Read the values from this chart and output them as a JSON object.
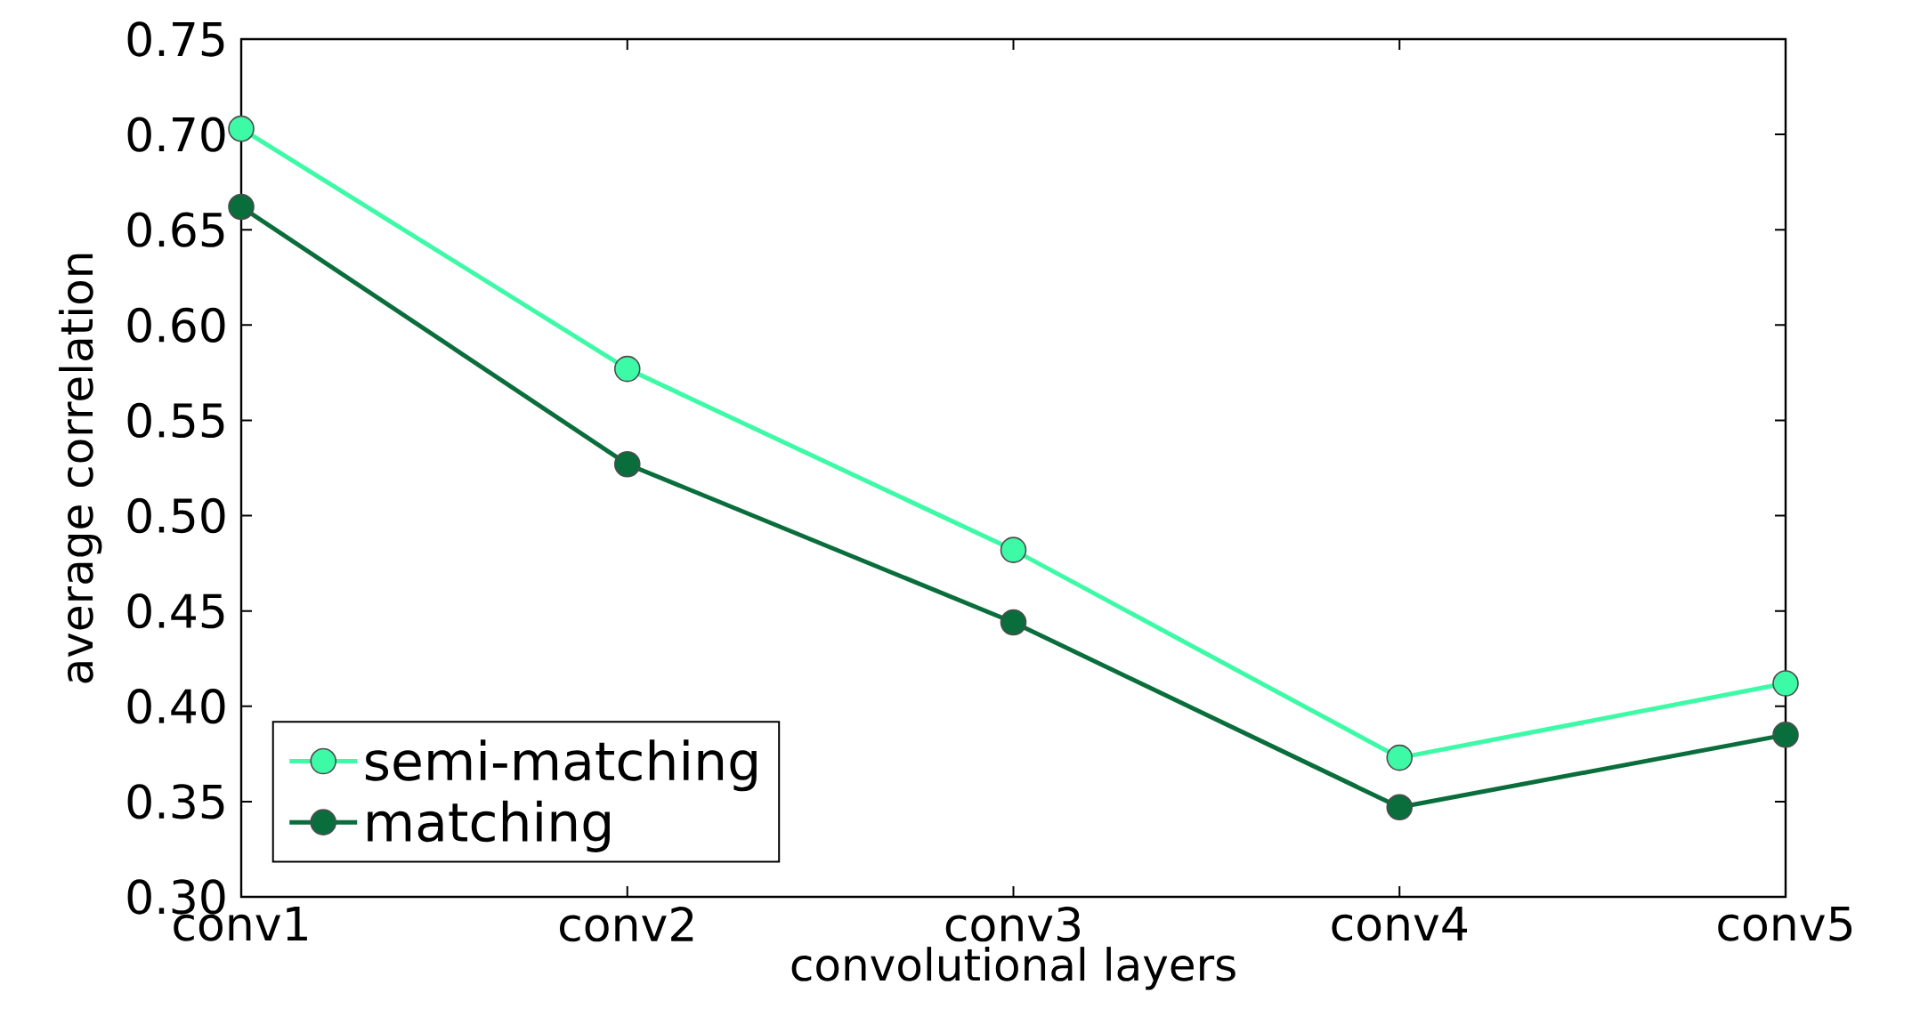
{
  "chart_data": {
    "type": "line",
    "xlabel": "convolutional layers",
    "ylabel": "average correlation",
    "categories": [
      "conv1",
      "conv2",
      "conv3",
      "conv4",
      "conv5"
    ],
    "series": [
      {
        "name": "semi-matching",
        "color": "#3dfaa6",
        "values": [
          0.703,
          0.577,
          0.482,
          0.373,
          0.412
        ]
      },
      {
        "name": "matching",
        "color": "#0a6e3c",
        "values": [
          0.662,
          0.527,
          0.444,
          0.347,
          0.385
        ]
      }
    ],
    "ylim": [
      0.3,
      0.75
    ],
    "yticks": [
      {
        "value": 0.3,
        "label": "0.30"
      },
      0.35,
      {
        "value": 0.4,
        "label": "0.40"
      },
      0.45,
      {
        "value": 0.5,
        "label": "0.50"
      },
      0.55,
      {
        "value": 0.6,
        "label": "0.60"
      },
      0.65,
      {
        "value": 0.7,
        "label": "0.70"
      },
      0.75
    ],
    "grid": false,
    "legend": "bottom left",
    "marker": "circle",
    "line_style": "solid"
  }
}
